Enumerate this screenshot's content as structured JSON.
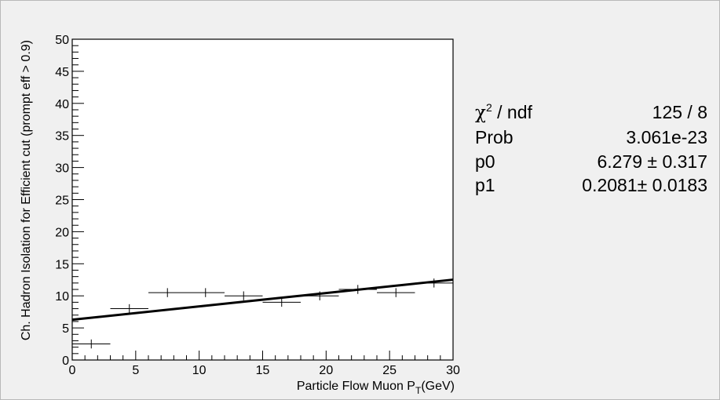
{
  "chart_data": {
    "type": "scatter",
    "title": "",
    "xlabel_main": "Particle Flow Muon P",
    "xlabel_sub": "T",
    "xlabel_unit": "(GeV)",
    "ylabel": "Ch. Hadron Isolation for Efficient cut (prompt eff > 0.9)",
    "xlim": [
      0,
      30
    ],
    "ylim": [
      0,
      50
    ],
    "x_ticks": [
      "0",
      "5",
      "10",
      "15",
      "20",
      "25",
      "30"
    ],
    "y_ticks": [
      "0",
      "5",
      "10",
      "15",
      "20",
      "25",
      "30",
      "35",
      "40",
      "45",
      "50"
    ],
    "points": [
      {
        "x": 1.5,
        "xerr": 1.5,
        "y": 2.5,
        "yerr": 0.7
      },
      {
        "x": 4.5,
        "xerr": 1.5,
        "y": 8.0,
        "yerr": 0.7
      },
      {
        "x": 7.5,
        "xerr": 1.5,
        "y": 10.5,
        "yerr": 0.7
      },
      {
        "x": 10.5,
        "xerr": 1.5,
        "y": 10.5,
        "yerr": 0.7
      },
      {
        "x": 13.5,
        "xerr": 1.5,
        "y": 10.0,
        "yerr": 0.7
      },
      {
        "x": 16.5,
        "xerr": 1.5,
        "y": 9.0,
        "yerr": 0.7
      },
      {
        "x": 19.5,
        "xerr": 1.5,
        "y": 10.0,
        "yerr": 0.7
      },
      {
        "x": 22.5,
        "xerr": 1.5,
        "y": 11.0,
        "yerr": 0.7
      },
      {
        "x": 25.5,
        "xerr": 1.5,
        "y": 10.5,
        "yerr": 0.7
      },
      {
        "x": 28.5,
        "xerr": 1.5,
        "y": 12.0,
        "yerr": 0.7
      }
    ],
    "fit": {
      "type": "linear",
      "p0": 6.279,
      "p1": 0.2081
    },
    "stats": {
      "chi2_symbol": "χ",
      "chi2_exp": "2",
      "chi2_rest": " / ndf",
      "chi2_value": "125 / 8",
      "prob_label": "Prob",
      "prob_value": "3.061e-23",
      "p0_label": "p0",
      "p0_value": "6.279 ± 0.317",
      "p1_label": "p1",
      "p1_value": "0.2081± 0.0183"
    },
    "grid": false,
    "legend": "none"
  }
}
